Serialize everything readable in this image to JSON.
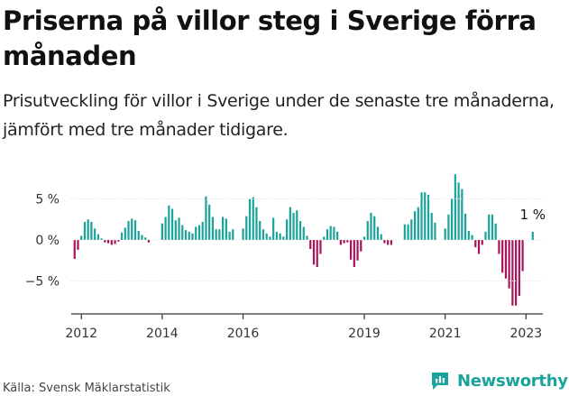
{
  "title": "Priserna på villor steg i Sverige förra månaden",
  "subtitle": "Prisutveckling för villor i Sverige under de senaste tre månaderna, jämfört med tre månader tidigare.",
  "source": "Källa: Svensk Mäklarstatistik",
  "brand": {
    "name": "Newsworthy",
    "icon": "newsworthy-chat-chart-icon"
  },
  "colors": {
    "positive": "#1aa39a",
    "negative": "#a8145a",
    "axis": "#333333",
    "text": "#1a1a1a"
  },
  "chart_data": {
    "type": "bar",
    "x_start": "2011-10",
    "x_end": "2023-06",
    "ylim": [
      -8.5,
      8.5
    ],
    "yticks": [
      {
        "value": 5,
        "label": "5 %"
      },
      {
        "value": 0,
        "label": "0 %"
      },
      {
        "value": -5,
        "label": "−5 %"
      }
    ],
    "xticks": [
      {
        "date": "2012-01",
        "label": "2012"
      },
      {
        "date": "2014-01",
        "label": "2014"
      },
      {
        "date": "2016-01",
        "label": "2016"
      },
      {
        "date": "2019-01",
        "label": "2019"
      },
      {
        "date": "2021-01",
        "label": "2021"
      },
      {
        "date": "2023-01",
        "label": "2023"
      }
    ],
    "annotations": [
      {
        "date": "2023-03",
        "value": 1,
        "label": "1 %"
      }
    ],
    "series": [
      {
        "values": [
          [
            "2011-11",
            -2.3
          ],
          [
            "2011-12",
            -1.2
          ],
          [
            "2012-01",
            0.5
          ],
          [
            "2012-02",
            2.2
          ],
          [
            "2012-03",
            2.5
          ],
          [
            "2012-04",
            2.2
          ],
          [
            "2012-05",
            1.4
          ],
          [
            "2012-06",
            0.7
          ],
          [
            "2012-07",
            0.2
          ],
          [
            "2012-08",
            -0.3
          ],
          [
            "2012-09",
            -0.4
          ],
          [
            "2012-10",
            -0.6
          ],
          [
            "2012-11",
            -0.5
          ],
          [
            "2012-12",
            -0.2
          ],
          [
            "2013-01",
            0.9
          ],
          [
            "2013-02",
            1.5
          ],
          [
            "2013-03",
            2.3
          ],
          [
            "2013-04",
            2.6
          ],
          [
            "2013-05",
            2.4
          ],
          [
            "2013-06",
            1.1
          ],
          [
            "2013-07",
            0.6
          ],
          [
            "2013-08",
            0.3
          ],
          [
            "2013-09",
            -0.3
          ],
          [
            "2014-01",
            2.0
          ],
          [
            "2014-02",
            2.8
          ],
          [
            "2014-03",
            4.2
          ],
          [
            "2014-04",
            3.8
          ],
          [
            "2014-05",
            2.4
          ],
          [
            "2014-06",
            2.7
          ],
          [
            "2014-07",
            1.8
          ],
          [
            "2014-08",
            1.2
          ],
          [
            "2014-09",
            1.0
          ],
          [
            "2014-10",
            0.8
          ],
          [
            "2014-11",
            1.6
          ],
          [
            "2014-12",
            1.8
          ],
          [
            "2015-01",
            2.2
          ],
          [
            "2015-02",
            5.3
          ],
          [
            "2015-03",
            4.3
          ],
          [
            "2015-04",
            2.8
          ],
          [
            "2015-05",
            1.3
          ],
          [
            "2015-06",
            1.3
          ],
          [
            "2015-07",
            2.8
          ],
          [
            "2015-08",
            2.6
          ],
          [
            "2015-09",
            1.0
          ],
          [
            "2015-10",
            1.3
          ],
          [
            "2016-01",
            1.4
          ],
          [
            "2016-02",
            2.9
          ],
          [
            "2016-03",
            5.0
          ],
          [
            "2016-04",
            5.2
          ],
          [
            "2016-05",
            4.0
          ],
          [
            "2016-06",
            2.3
          ],
          [
            "2016-07",
            1.3
          ],
          [
            "2016-08",
            0.8
          ],
          [
            "2016-09",
            0.4
          ],
          [
            "2016-10",
            2.7
          ],
          [
            "2016-11",
            1.0
          ],
          [
            "2016-12",
            0.8
          ],
          [
            "2017-01",
            0.4
          ],
          [
            "2017-02",
            2.5
          ],
          [
            "2017-03",
            4.0
          ],
          [
            "2017-04",
            3.3
          ],
          [
            "2017-05",
            3.6
          ],
          [
            "2017-06",
            2.3
          ],
          [
            "2017-07",
            1.6
          ],
          [
            "2017-08",
            0.5
          ],
          [
            "2017-09",
            -1.1
          ],
          [
            "2017-10",
            -3.0
          ],
          [
            "2017-11",
            -3.3
          ],
          [
            "2017-12",
            -1.7
          ],
          [
            "2018-01",
            0.4
          ],
          [
            "2018-02",
            1.3
          ],
          [
            "2018-03",
            1.7
          ],
          [
            "2018-04",
            1.6
          ],
          [
            "2018-05",
            1.0
          ],
          [
            "2018-06",
            -0.6
          ],
          [
            "2018-07",
            -0.4
          ],
          [
            "2018-08",
            -0.3
          ],
          [
            "2018-09",
            -2.4
          ],
          [
            "2018-10",
            -3.3
          ],
          [
            "2018-11",
            -2.5
          ],
          [
            "2018-12",
            -1.4
          ],
          [
            "2019-01",
            0.4
          ],
          [
            "2019-02",
            2.3
          ],
          [
            "2019-03",
            3.3
          ],
          [
            "2019-04",
            2.9
          ],
          [
            "2019-05",
            1.6
          ],
          [
            "2019-06",
            0.7
          ],
          [
            "2019-07",
            -0.4
          ],
          [
            "2019-08",
            -0.6
          ],
          [
            "2019-09",
            -0.6
          ],
          [
            "2020-01",
            1.9
          ],
          [
            "2020-02",
            1.9
          ],
          [
            "2020-03",
            2.5
          ],
          [
            "2020-04",
            3.5
          ],
          [
            "2020-05",
            4.0
          ],
          [
            "2020-06",
            5.8
          ],
          [
            "2020-07",
            5.8
          ],
          [
            "2020-08",
            5.5
          ],
          [
            "2020-09",
            3.3
          ],
          [
            "2020-10",
            2.1
          ],
          [
            "2021-01",
            1.4
          ],
          [
            "2021-02",
            3.1
          ],
          [
            "2021-03",
            5.0
          ],
          [
            "2021-04",
            8.0
          ],
          [
            "2021-05",
            7.0
          ],
          [
            "2021-06",
            6.2
          ],
          [
            "2021-07",
            3.2
          ],
          [
            "2021-08",
            1.1
          ],
          [
            "2021-09",
            0.6
          ],
          [
            "2021-10",
            -0.9
          ],
          [
            "2021-11",
            -1.7
          ],
          [
            "2021-12",
            -0.6
          ],
          [
            "2022-01",
            1.0
          ],
          [
            "2022-02",
            3.1
          ],
          [
            "2022-03",
            3.1
          ],
          [
            "2022-04",
            2.0
          ],
          [
            "2022-05",
            -1.7
          ],
          [
            "2022-06",
            -4.0
          ],
          [
            "2022-07",
            -4.7
          ],
          [
            "2022-08",
            -5.9
          ],
          [
            "2022-09",
            -8.0
          ],
          [
            "2022-10",
            -8.0
          ],
          [
            "2022-11",
            -6.8
          ],
          [
            "2022-12",
            -3.8
          ],
          [
            "2023-03",
            1.0
          ]
        ]
      }
    ]
  }
}
